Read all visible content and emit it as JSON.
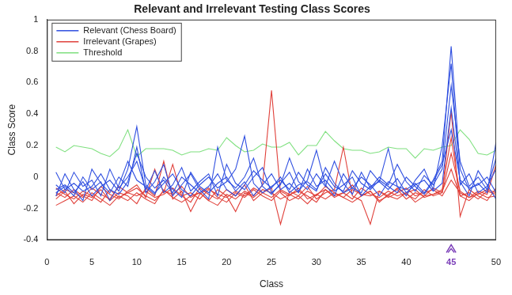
{
  "chart_data": {
    "type": "line",
    "title": "Relevant and Irrelevant Testing Class Scores",
    "x_label": "Class",
    "y_label": "Class Score",
    "x": [
      1,
      2,
      3,
      4,
      5,
      6,
      7,
      8,
      9,
      10,
      11,
      12,
      13,
      14,
      15,
      16,
      17,
      18,
      19,
      20,
      21,
      22,
      23,
      24,
      25,
      26,
      27,
      28,
      29,
      30,
      31,
      32,
      33,
      34,
      35,
      36,
      37,
      38,
      39,
      40,
      41,
      42,
      43,
      44,
      45,
      46,
      47,
      48,
      49,
      50
    ],
    "xlim": [
      0,
      50
    ],
    "xticks": [
      0,
      5,
      10,
      15,
      20,
      25,
      30,
      35,
      40,
      45,
      50
    ],
    "ylim": [
      -0.4,
      1
    ],
    "yticks": [
      -0.4,
      -0.2,
      0,
      0.2,
      0.4,
      0.6,
      0.8,
      1
    ],
    "grid": false,
    "legend": "upper left",
    "annotations": [
      {
        "x": 45,
        "color": "#7a3db8"
      }
    ],
    "series": [
      {
        "name": "Relevant (Chess Board)",
        "color": "#2f4fe0",
        "values": [
          -0.08,
          -0.05,
          -0.1,
          -0.03,
          -0.12,
          -0.06,
          -0.02,
          -0.09,
          0.05,
          0.32,
          -0.05,
          -0.1,
          -0.04,
          0.02,
          -0.08,
          -0.12,
          -0.05,
          0.0,
          -0.07,
          -0.03,
          0.05,
          0.26,
          -0.04,
          -0.1,
          -0.06,
          -0.02,
          -0.08,
          0.03,
          -0.05,
          -0.09,
          0.06,
          -0.04,
          -0.1,
          -0.07,
          0.0,
          -0.05,
          -0.12,
          -0.03,
          -0.06,
          -0.08,
          -0.04,
          -0.1,
          -0.02,
          0.1,
          0.83,
          0.05,
          -0.08,
          -0.04,
          -0.1,
          0.22
        ]
      },
      {
        "name": "Relevant (Chess Board)",
        "color": "#2f4fe0",
        "values": [
          -0.12,
          0.02,
          -0.08,
          -0.15,
          0.05,
          -0.04,
          -0.1,
          0.0,
          -0.06,
          0.19,
          -0.1,
          -0.03,
          0.08,
          -0.12,
          -0.05,
          0.02,
          -0.08,
          -0.14,
          0.19,
          -0.02,
          -0.07,
          0.0,
          0.12,
          -0.06,
          -0.11,
          -0.04,
          0.03,
          -0.09,
          -0.02,
          0.17,
          -0.05,
          -0.12,
          0.02,
          -0.07,
          -0.1,
          0.04,
          -0.03,
          0.18,
          -0.06,
          -0.12,
          -0.02,
          0.05,
          -0.08,
          0.2,
          0.72,
          -0.05,
          0.02,
          -0.1,
          -0.06,
          0.05
        ]
      },
      {
        "name": "Relevant (Chess Board)",
        "color": "#2f4fe0",
        "values": [
          -0.05,
          -0.1,
          0.03,
          -0.06,
          -0.02,
          -0.12,
          0.05,
          -0.07,
          0.0,
          0.1,
          -0.08,
          0.04,
          -0.1,
          -0.05,
          0.06,
          -0.09,
          -0.03,
          0.02,
          -0.12,
          0.08,
          -0.04,
          -0.08,
          0.0,
          0.06,
          -0.1,
          -0.05,
          0.12,
          -0.03,
          -0.08,
          0.02,
          -0.06,
          0.1,
          -0.04,
          -0.11,
          0.03,
          -0.07,
          0.0,
          -0.05,
          0.08,
          -0.03,
          -0.09,
          0.01,
          -0.05,
          0.05,
          0.58,
          0.1,
          -0.06,
          0.0,
          -0.08,
          0.12
        ]
      },
      {
        "name": "Relevant (Chess Board)",
        "color": "#2f4fe0",
        "values": [
          -0.1,
          -0.06,
          -0.12,
          0.0,
          -0.08,
          -0.03,
          -0.15,
          -0.05,
          0.1,
          -0.02,
          -0.06,
          -0.11,
          0.0,
          -0.08,
          -0.13,
          0.03,
          -0.06,
          -0.1,
          -0.04,
          0.0,
          -0.09,
          -0.03,
          -0.12,
          -0.05,
          0.02,
          -0.08,
          -0.04,
          -0.1,
          0.05,
          -0.06,
          -0.02,
          -0.09,
          -0.05,
          0.0,
          -0.12,
          -0.06,
          -0.03,
          -0.08,
          -0.01,
          -0.1,
          -0.05,
          -0.02,
          -0.09,
          -0.04,
          0.44,
          -0.03,
          -0.12,
          0.04,
          -0.05,
          -0.14
        ]
      },
      {
        "name": "Relevant (Chess Board)",
        "color": "#2f4fe0",
        "values": [
          0.03,
          -0.08,
          -0.04,
          -0.09,
          -0.06,
          0.02,
          -0.08,
          -0.11,
          -0.03,
          0.15,
          0.0,
          -0.07,
          -0.02,
          -0.1,
          0.0,
          -0.05,
          -0.1,
          -0.06,
          0.02,
          -0.08,
          -0.12,
          -0.05,
          0.04,
          -0.02,
          -0.07,
          0.0,
          -0.1,
          -0.05,
          -0.03,
          -0.08,
          0.02,
          -0.06,
          -0.09,
          0.04,
          -0.04,
          -0.08,
          -0.02,
          -0.06,
          -0.1,
          0.0,
          -0.06,
          -0.11,
          -0.03,
          0.08,
          0.3,
          -0.02,
          -0.07,
          -0.05,
          0.0,
          -0.1
        ]
      },
      {
        "name": "Irrelevant (Grapes)",
        "color": "#e0403a",
        "values": [
          -0.18,
          -0.15,
          -0.12,
          -0.16,
          -0.1,
          -0.14,
          -0.18,
          -0.12,
          -0.15,
          -0.1,
          -0.14,
          -0.17,
          -0.08,
          -0.13,
          -0.16,
          -0.12,
          -0.1,
          -0.15,
          -0.18,
          -0.11,
          -0.14,
          -0.09,
          -0.12,
          -0.05,
          0.55,
          -0.1,
          -0.15,
          -0.12,
          -0.17,
          -0.11,
          -0.14,
          -0.1,
          -0.13,
          -0.16,
          -0.12,
          -0.09,
          -0.15,
          -0.12,
          -0.14,
          -0.1,
          -0.16,
          -0.12,
          -0.11,
          -0.08,
          0.25,
          -0.12,
          -0.15,
          -0.1,
          -0.13,
          -0.12
        ]
      },
      {
        "name": "Irrelevant (Grapes)",
        "color": "#e0403a",
        "values": [
          -0.1,
          -0.13,
          -0.08,
          -0.12,
          -0.15,
          -0.06,
          -0.11,
          -0.14,
          -0.09,
          -0.05,
          -0.13,
          0.05,
          -0.1,
          0.08,
          -0.12,
          -0.16,
          -0.07,
          -0.11,
          -0.14,
          -0.08,
          -0.12,
          -0.05,
          -0.15,
          -0.1,
          -0.07,
          -0.3,
          -0.09,
          -0.12,
          -0.06,
          -0.14,
          -0.1,
          -0.08,
          0.19,
          -0.12,
          -0.15,
          -0.3,
          -0.09,
          -0.12,
          -0.07,
          -0.11,
          -0.14,
          -0.08,
          -0.12,
          -0.1,
          0.42,
          -0.25,
          -0.08,
          -0.12,
          -0.15,
          -0.07
        ]
      },
      {
        "name": "Irrelevant (Grapes)",
        "color": "#e0403a",
        "values": [
          -0.14,
          -0.09,
          -0.17,
          -0.11,
          -0.13,
          -0.08,
          -0.15,
          -0.1,
          -0.12,
          -0.17,
          -0.07,
          -0.12,
          0.1,
          -0.14,
          -0.09,
          -0.22,
          -0.11,
          -0.07,
          -0.13,
          -0.16,
          -0.1,
          -0.13,
          -0.08,
          -0.12,
          -0.15,
          -0.09,
          -0.12,
          -0.07,
          -0.14,
          -0.11,
          -0.08,
          -0.13,
          -0.1,
          -0.05,
          -0.12,
          -0.09,
          -0.16,
          -0.11,
          -0.08,
          -0.14,
          -0.1,
          -0.12,
          -0.07,
          -0.1,
          0.15,
          -0.09,
          -0.13,
          -0.11,
          -0.08,
          -0.1
        ]
      },
      {
        "name": "Irrelevant (Grapes)",
        "color": "#e0403a",
        "values": [
          -0.07,
          -0.11,
          -0.14,
          -0.09,
          -0.12,
          -0.16,
          -0.08,
          -0.13,
          -0.1,
          -0.07,
          -0.12,
          -0.15,
          -0.09,
          -0.11,
          -0.06,
          -0.13,
          -0.1,
          -0.15,
          -0.08,
          -0.12,
          -0.22,
          -0.1,
          -0.13,
          -0.08,
          -0.1,
          -0.14,
          -0.11,
          -0.09,
          -0.12,
          -0.16,
          -0.08,
          -0.12,
          -0.1,
          -0.14,
          -0.07,
          -0.11,
          -0.13,
          -0.09,
          -0.12,
          -0.1,
          -0.08,
          -0.13,
          -0.11,
          -0.09,
          0.05,
          -0.12,
          -0.1,
          -0.14,
          -0.09,
          -0.11
        ]
      },
      {
        "name": "Irrelevant (Grapes)",
        "color": "#e0403a",
        "values": [
          -0.12,
          -0.08,
          -0.1,
          -0.13,
          -0.07,
          -0.11,
          -0.14,
          -0.06,
          -0.1,
          -0.12,
          -0.09,
          -0.13,
          -0.11,
          -0.07,
          -0.12,
          -0.1,
          -0.14,
          -0.08,
          -0.11,
          -0.13,
          -0.09,
          -0.12,
          -0.07,
          -0.1,
          -0.13,
          -0.08,
          -0.11,
          -0.14,
          -0.09,
          -0.12,
          -0.06,
          -0.1,
          -0.13,
          -0.08,
          -0.11,
          -0.12,
          -0.09,
          -0.13,
          -0.1,
          -0.07,
          -0.12,
          -0.1,
          -0.08,
          -0.12,
          -0.02,
          -0.1,
          -0.13,
          -0.09,
          -0.11,
          0.08
        ]
      },
      {
        "name": "Threshold",
        "color": "#7fe07f",
        "values": [
          0.19,
          0.16,
          0.2,
          0.19,
          0.18,
          0.15,
          0.13,
          0.18,
          0.3,
          0.13,
          0.18,
          0.18,
          0.18,
          0.17,
          0.14,
          0.16,
          0.16,
          0.18,
          0.17,
          0.25,
          0.2,
          0.16,
          0.17,
          0.21,
          0.19,
          0.19,
          0.22,
          0.14,
          0.2,
          0.2,
          0.29,
          0.23,
          0.18,
          0.17,
          0.17,
          0.15,
          0.16,
          0.19,
          0.18,
          0.18,
          0.12,
          0.18,
          0.17,
          0.19,
          0.2,
          0.3,
          0.24,
          0.15,
          0.14,
          0.17
        ]
      }
    ]
  }
}
